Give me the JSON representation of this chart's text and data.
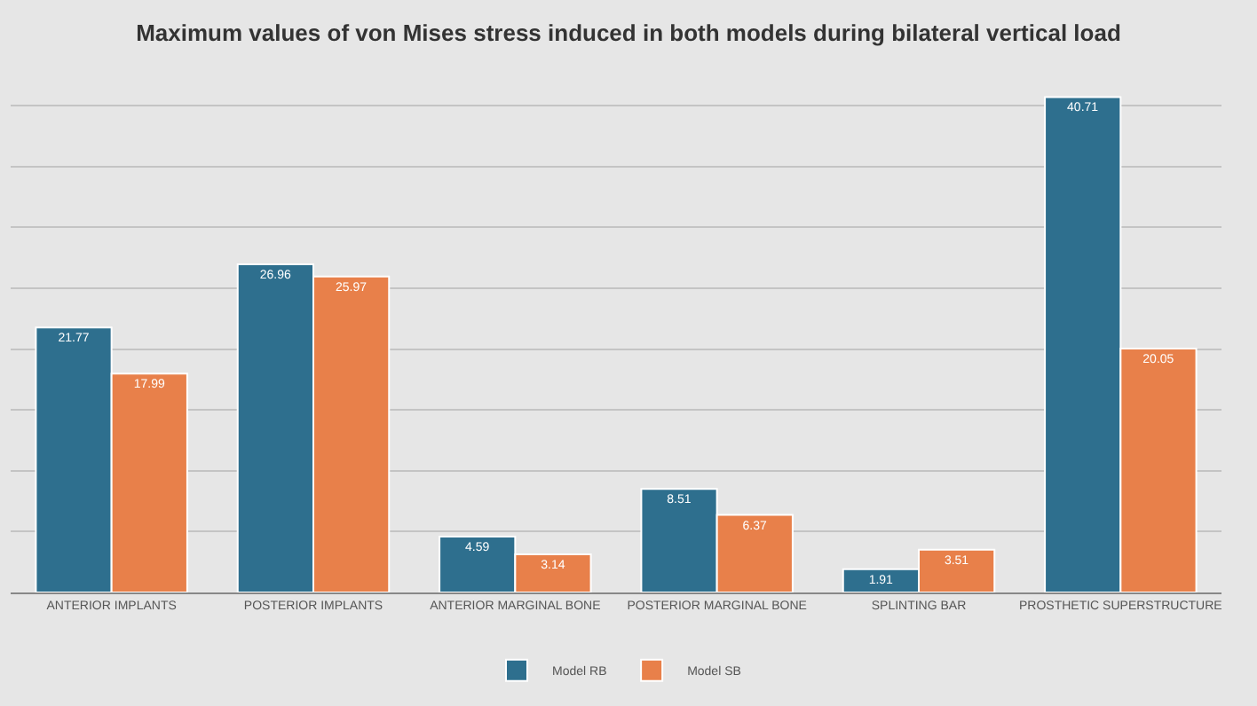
{
  "chart_data": {
    "type": "bar",
    "title": "Maximum values of von Mises stress induced in both models during bilateral vertical load",
    "categories": [
      "ANTERIOR IMPLANTS",
      "POSTERIOR IMPLANTS",
      "ANTERIOR MARGINAL BONE",
      "POSTERIOR MARGINAL BONE",
      "SPLINTING BAR",
      "PROSTHETIC SUPERSTRUCTURE"
    ],
    "series": [
      {
        "name": "Model RB",
        "color": "#2e6f8e",
        "values": [
          21.77,
          26.96,
          4.59,
          8.51,
          1.91,
          40.71
        ]
      },
      {
        "name": "Model SB",
        "color": "#e8804a",
        "values": [
          17.99,
          25.97,
          3.14,
          6.37,
          3.51,
          20.05
        ]
      }
    ],
    "yticks": [
      {
        "value": 0,
        "label": null
      },
      {
        "value": 5,
        "label": null
      },
      {
        "value": 10,
        "label": null
      },
      {
        "value": 15,
        "label": null
      },
      {
        "value": 20,
        "label": null
      },
      {
        "value": 25,
        "label": null
      },
      {
        "value": 30,
        "label": null
      },
      {
        "value": 35,
        "label": null
      },
      {
        "value": 40,
        "label": null
      }
    ],
    "grid": "y",
    "legend": "bottom",
    "data_labels": true,
    "tick_labels": "x"
  }
}
